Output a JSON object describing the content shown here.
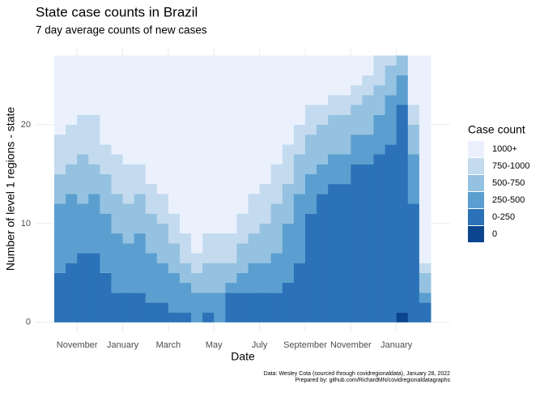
{
  "chart_data": {
    "type": "stacked_area",
    "title": "State case counts in Brazil",
    "subtitle": "7 day average counts of new cases",
    "x_label": "Date",
    "y_label": "Number of level 1 regions - state",
    "caption": [
      "Data: Wesley Cota (sourced through covidregionaldata), January 28, 2022",
      "Prepared by: github.com/RichardMN/covidregionaldatagraphs"
    ],
    "legend_title": "Case count",
    "categories": [
      null,
      null,
      "November",
      null,
      null,
      null,
      "January",
      null,
      null,
      null,
      "March",
      null,
      null,
      null,
      "May",
      null,
      null,
      null,
      "July",
      null,
      null,
      null,
      "September",
      null,
      null,
      null,
      "November",
      null,
      null,
      null,
      "January",
      null,
      null
    ],
    "series": [
      {
        "name": "0",
        "color": "#0b4590",
        "values": [
          0,
          0,
          0,
          0,
          0,
          0,
          0,
          0,
          0,
          0,
          0,
          0,
          0,
          0,
          0,
          0,
          0,
          0,
          0,
          0,
          0,
          0,
          0,
          0,
          0,
          0,
          0,
          0,
          0,
          0,
          1,
          0,
          0
        ]
      },
      {
        "name": "0-250",
        "color": "#2b72b8",
        "values": [
          5,
          6,
          7,
          7,
          5,
          3,
          3,
          3,
          2,
          2,
          1,
          1,
          0,
          1,
          0,
          3,
          3,
          3,
          3,
          3,
          4,
          6,
          11,
          13,
          14,
          14,
          16,
          16,
          17,
          18,
          21,
          12,
          2
        ]
      },
      {
        "name": "250-500",
        "color": "#5b9fd0",
        "values": [
          7,
          7,
          5,
          6,
          6,
          6,
          5,
          6,
          5,
          4,
          4,
          3,
          3,
          2,
          3,
          1,
          2,
          3,
          3,
          4,
          6,
          7,
          4,
          3,
          3,
          3,
          3,
          3,
          4,
          5,
          3,
          5,
          1
        ]
      },
      {
        "name": "500-750",
        "color": "#94c2e0",
        "values": [
          3,
          3,
          5,
          3,
          4,
          4,
          4,
          4,
          4,
          4,
          3,
          2,
          2,
          3,
          3,
          2,
          3,
          3,
          4,
          5,
          4,
          4,
          4,
          4,
          4,
          4,
          3,
          4,
          3,
          3,
          2,
          3,
          2
        ]
      },
      {
        "name": "750-1000",
        "color": "#c4daef",
        "values": [
          4,
          4,
          4,
          5,
          3,
          4,
          4,
          3,
          3,
          3,
          3,
          3,
          2,
          3,
          3,
          3,
          3,
          4,
          4,
          4,
          4,
          3,
          3,
          2,
          2,
          2,
          2,
          2,
          3,
          1,
          0,
          2,
          1
        ]
      },
      {
        "name": "1000+",
        "color": "#eaf1fd",
        "values": [
          8,
          7,
          6,
          6,
          9,
          10,
          11,
          11,
          13,
          14,
          16,
          18,
          20,
          18,
          18,
          18,
          16,
          14,
          13,
          11,
          9,
          7,
          5,
          5,
          4,
          4,
          3,
          2,
          0,
          0,
          0,
          5,
          21
        ]
      }
    ],
    "ylim": [
      -1,
      27.7
    ],
    "yticks": [
      0,
      10,
      20
    ],
    "grid": true
  }
}
